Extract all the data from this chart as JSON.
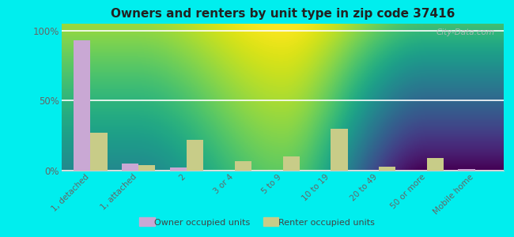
{
  "title": "Owners and renters by unit type in zip code 37416",
  "categories": [
    "1, detached",
    "1, attached",
    "2",
    "3 or 4",
    "5 to 9",
    "10 to 19",
    "20 to 49",
    "50 or more",
    "Mobile home"
  ],
  "owner_values": [
    93,
    5,
    2,
    0,
    0,
    0,
    0,
    0,
    1
  ],
  "renter_values": [
    27,
    4,
    22,
    7,
    10,
    30,
    3,
    9,
    0
  ],
  "owner_color": "#c9a8d4",
  "renter_color": "#c8cc88",
  "outer_bg": "#00eeee",
  "ylabel_ticks": [
    "0%",
    "50%",
    "100%"
  ],
  "ytick_vals": [
    0,
    50,
    100
  ],
  "ylim": [
    0,
    105
  ],
  "legend_owner": "Owner occupied units",
  "legend_renter": "Renter occupied units",
  "watermark": "City-Data.com",
  "bar_width": 0.35,
  "plot_bg_top": "#f0f8e8",
  "plot_bg_bottom": "#e8f0d0"
}
